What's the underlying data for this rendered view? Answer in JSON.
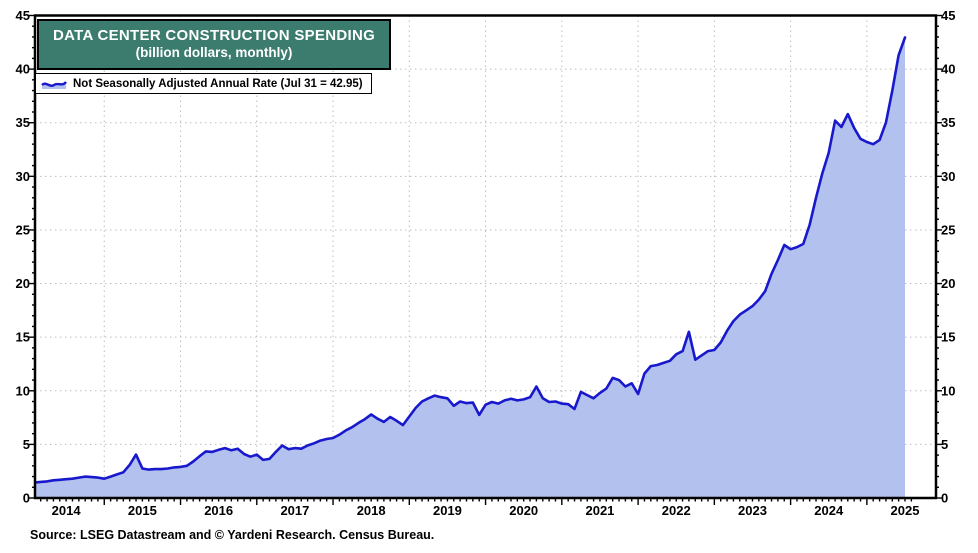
{
  "header": {
    "title": "DATA CENTER CONSTRUCTION SPENDING",
    "subtitle": "(billion dollars, monthly)",
    "title_bg": "#3B7C6F"
  },
  "legend": {
    "label": "Not Seasonally Adjusted Annual Rate (Jul 31 = 42.95)"
  },
  "footer": {
    "source": "Source: LSEG Datastream and © Yardeni Research. Census Bureau."
  },
  "chart_data": {
    "type": "area",
    "title": "DATA CENTER CONSTRUCTION SPENDING",
    "subtitle": "(billion dollars, monthly)",
    "frequency": "monthly",
    "x_start": "2014-01",
    "x_end": "2025-07",
    "x_tick_labels": [
      "2014",
      "2015",
      "2016",
      "2017",
      "2018",
      "2019",
      "2020",
      "2021",
      "2022",
      "2023",
      "2024",
      "2025"
    ],
    "y_ticks": [
      0,
      5,
      10,
      15,
      20,
      25,
      30,
      35,
      40,
      45
    ],
    "ylim": [
      0,
      45
    ],
    "y_minor_step": 1,
    "grid": "dotted gray horizontal lines at major y ticks; dotted vertical lines at each January; y axis labels on both sides",
    "legend_position": "top-left boxed",
    "line_color": "#1818CC",
    "fill_color": "#B3C1EE",
    "series": [
      {
        "name": "Not Seasonally Adjusted Annual Rate",
        "last_point_label": "Jul 31 = 42.95",
        "values": [
          1.4,
          1.45,
          1.5,
          1.55,
          1.65,
          1.7,
          1.75,
          1.8,
          1.9,
          2.0,
          1.95,
          1.9,
          1.8,
          2.0,
          2.2,
          2.4,
          3.1,
          4.05,
          2.75,
          2.65,
          2.7,
          2.7,
          2.75,
          2.85,
          2.9,
          3.0,
          3.4,
          3.9,
          4.35,
          4.3,
          4.5,
          4.65,
          4.45,
          4.6,
          4.1,
          3.85,
          4.05,
          3.55,
          3.65,
          4.3,
          4.9,
          4.55,
          4.65,
          4.6,
          4.9,
          5.1,
          5.35,
          5.5,
          5.6,
          5.9,
          6.3,
          6.6,
          7.0,
          7.35,
          7.8,
          7.4,
          7.1,
          7.55,
          7.2,
          6.8,
          7.6,
          8.4,
          9.0,
          9.3,
          9.55,
          9.4,
          9.3,
          8.6,
          9.0,
          8.85,
          8.9,
          7.75,
          8.7,
          8.95,
          8.8,
          9.1,
          9.25,
          9.1,
          9.2,
          9.4,
          10.4,
          9.3,
          8.95,
          9.0,
          8.8,
          8.75,
          8.3,
          9.9,
          9.6,
          9.3,
          9.8,
          10.2,
          11.2,
          11.0,
          10.4,
          10.7,
          9.7,
          11.6,
          12.3,
          12.4,
          12.6,
          12.8,
          13.4,
          13.7,
          15.5,
          12.9,
          13.3,
          13.7,
          13.8,
          14.5,
          15.6,
          16.5,
          17.1,
          17.5,
          17.9,
          18.5,
          19.3,
          20.9,
          22.2,
          23.6,
          23.2,
          23.4,
          23.7,
          25.5,
          28.0,
          30.3,
          32.2,
          35.2,
          34.6,
          35.8,
          34.5,
          33.5,
          33.2,
          33.0,
          33.4,
          35.0,
          38.0,
          41.3,
          42.95
        ]
      }
    ]
  }
}
